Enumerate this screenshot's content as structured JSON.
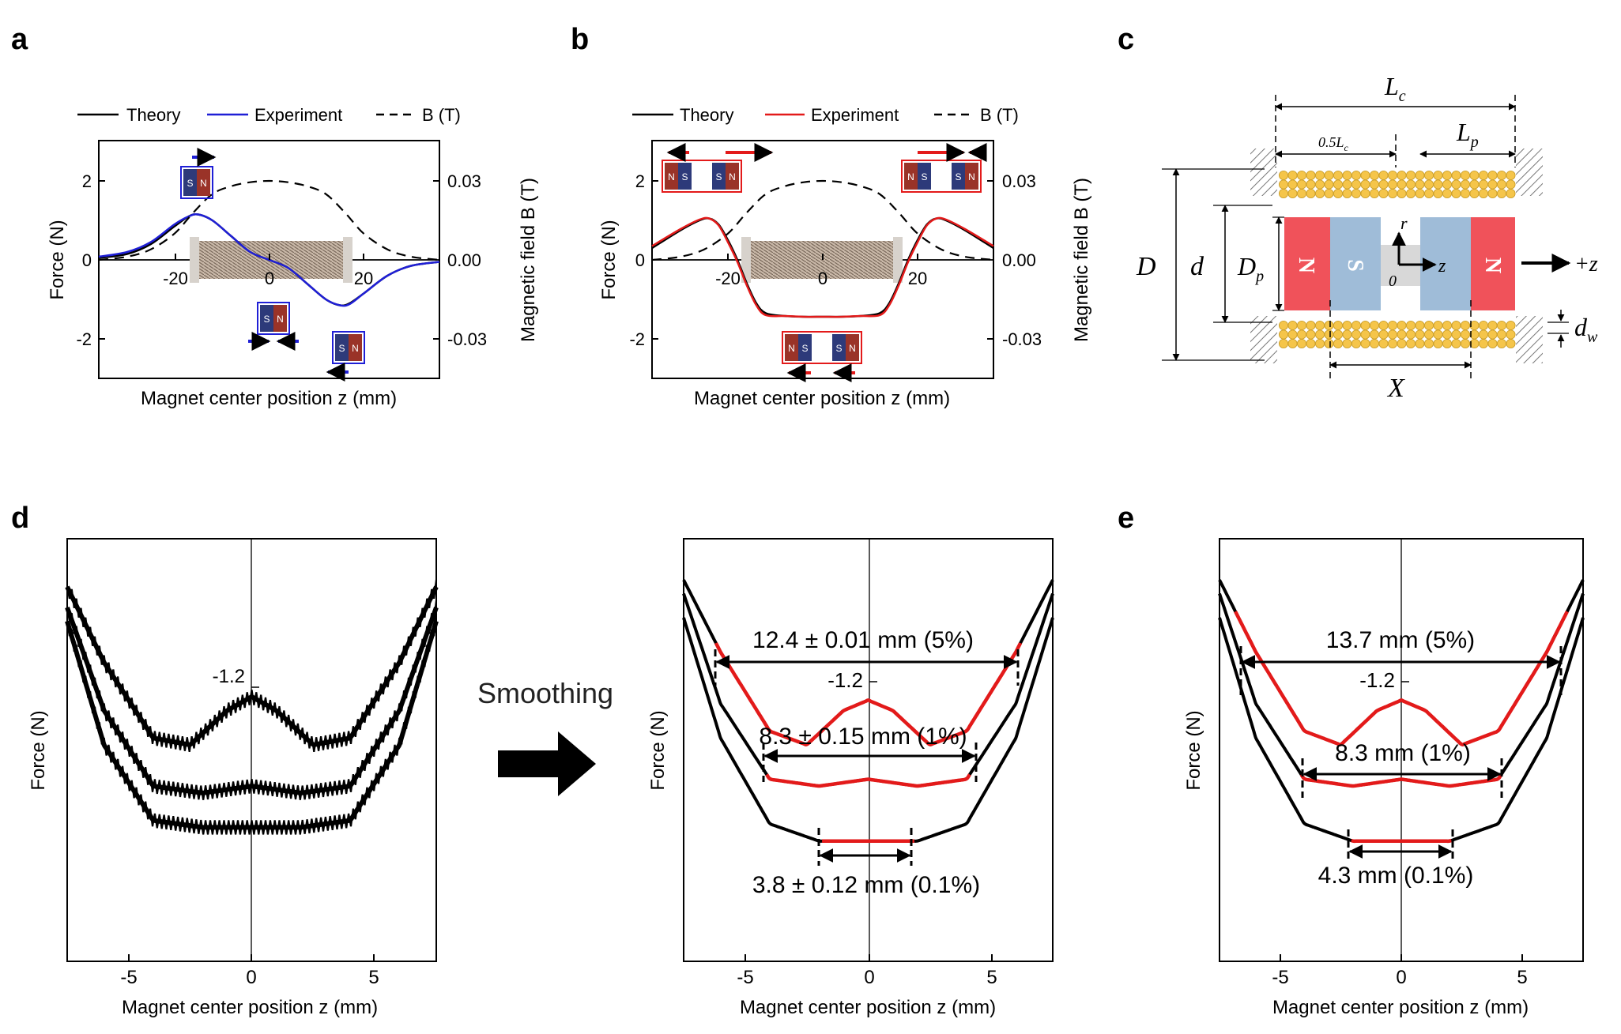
{
  "panels": {
    "a": {
      "label": "a",
      "legend": {
        "theory": "Theory",
        "experiment": "Experiment",
        "b": "B (T)"
      },
      "xlabel": "Magnet center position z (mm)",
      "ylabel": "Force (N)",
      "y2label": "Magnetic field B (T)",
      "xticks": [
        "-20",
        "0",
        "20"
      ],
      "yticks": [
        "2",
        "0",
        "-2"
      ],
      "y2ticks": [
        "0.03",
        "0.00",
        "-0.03"
      ],
      "magnet_letters": [
        "S",
        "N"
      ]
    },
    "b": {
      "label": "b",
      "legend": {
        "theory": "Theory",
        "experiment": "Experiment",
        "b": "B (T)"
      },
      "xlabel": "Magnet center position z (mm)",
      "ylabel": "Force (N)",
      "y2label": "Magnetic field B (T)",
      "xticks": [
        "-20",
        "0",
        "20"
      ],
      "yticks": [
        "2",
        "0",
        "-2"
      ],
      "y2ticks": [
        "0.03",
        "0.00",
        "-0.03"
      ],
      "magnet_letters": [
        "N",
        "S",
        "S",
        "N"
      ]
    },
    "c": {
      "label": "c",
      "labels": {
        "Lc": "L",
        "Lc_sub": "c",
        "half_Lc": "0.5L",
        "half_Lc_sub": "c",
        "Lp": "L",
        "Lp_sub": "p",
        "D": "D",
        "d": "d",
        "Dp": "D",
        "Dp_sub": "p",
        "dw": "d",
        "dw_sub": "w",
        "X": "X",
        "r": "r",
        "z": "z",
        "zero": "0",
        "plus_z": "+z",
        "pole_N": "N",
        "pole_S": "S"
      }
    },
    "d": {
      "label": "d",
      "xlabel": "Magnet center position z (mm)",
      "ylabel": "Force (N)",
      "xticks": [
        "-5",
        "0",
        "5"
      ],
      "ytick": "-1.2",
      "arrow_label": "Smoothing",
      "annotations": [
        "12.4 ± 0.01 mm (5%)",
        "8.3 ± 0.15 mm (1%)",
        "3.8 ± 0.12 mm (0.1%)"
      ]
    },
    "e": {
      "label": "e",
      "xlabel": "Magnet center position z (mm)",
      "ylabel": "Force (N)",
      "xticks": [
        "-5",
        "0",
        "5"
      ],
      "ytick": "-1.2",
      "annotations": [
        "13.7 mm (5%)",
        "8.3 mm (1%)",
        "4.3 mm (0.1%)"
      ]
    }
  },
  "colors": {
    "theory": "#000000",
    "exp_a": "#1f1fd6",
    "exp_b": "#e31a1a",
    "coil": "#f5c54a",
    "magnet_N": "#f0525a",
    "magnet_S": "#9fbcd8"
  },
  "chart_data": [
    {
      "type": "line",
      "panel": "a",
      "xlim": [
        -36,
        36
      ],
      "ylim": [
        -3,
        3
      ],
      "y2lim": [
        -0.045,
        0.045
      ],
      "series": [
        {
          "name": "Theory",
          "axis": "left",
          "x": [
            -36,
            -30,
            -25,
            -20,
            -17,
            -15,
            -12,
            -8,
            -4,
            0,
            4,
            8,
            12,
            15,
            17,
            20,
            25,
            30,
            36
          ],
          "y": [
            0.05,
            0.15,
            0.4,
            0.85,
            1.1,
            1.15,
            1.0,
            0.6,
            0.2,
            0.0,
            -0.2,
            -0.6,
            -1.0,
            -1.15,
            -1.1,
            -0.85,
            -0.4,
            -0.15,
            -0.05
          ]
        },
        {
          "name": "Experiment",
          "axis": "left",
          "x": [
            -36,
            -30,
            -25,
            -20,
            -17,
            -15,
            -12,
            -8,
            -4,
            0,
            4,
            8,
            12,
            15,
            17,
            20,
            25,
            30,
            36
          ],
          "y": [
            0.08,
            0.2,
            0.45,
            0.9,
            1.1,
            1.15,
            1.0,
            0.6,
            0.2,
            0.0,
            -0.2,
            -0.6,
            -1.0,
            -1.15,
            -1.12,
            -0.85,
            -0.4,
            -0.15,
            -0.05
          ]
        },
        {
          "name": "B (T)",
          "axis": "right",
          "x": [
            -36,
            -30,
            -25,
            -20,
            -16,
            -12,
            -8,
            -4,
            0,
            4,
            8,
            12,
            16,
            20,
            25,
            30,
            36
          ],
          "y": [
            0.0,
            0.0012,
            0.004,
            0.01,
            0.018,
            0.025,
            0.028,
            0.0295,
            0.03,
            0.0295,
            0.028,
            0.025,
            0.018,
            0.01,
            0.004,
            0.0012,
            0.0
          ]
        }
      ]
    },
    {
      "type": "line",
      "panel": "b",
      "xlim": [
        -36,
        36
      ],
      "ylim": [
        -3,
        3
      ],
      "y2lim": [
        -0.045,
        0.045
      ],
      "series": [
        {
          "name": "Theory",
          "axis": "left",
          "x": [
            -36,
            -30,
            -26,
            -24,
            -22,
            -20,
            -18,
            -16,
            -14,
            -12,
            -8,
            -4,
            0,
            4,
            8,
            12,
            14,
            16,
            18,
            20,
            22,
            24,
            26,
            30,
            36
          ],
          "y": [
            0.3,
            0.75,
            1.0,
            1.05,
            0.9,
            0.5,
            0.0,
            -0.6,
            -1.1,
            -1.35,
            -1.42,
            -1.44,
            -1.44,
            -1.44,
            -1.42,
            -1.35,
            -1.1,
            -0.6,
            0.0,
            0.5,
            0.9,
            1.05,
            1.0,
            0.75,
            0.3
          ]
        },
        {
          "name": "Experiment",
          "axis": "left",
          "x": [
            -36,
            -30,
            -26,
            -24,
            -22,
            -20,
            -18,
            -16,
            -14,
            -12,
            -8,
            -4,
            0,
            4,
            8,
            12,
            14,
            16,
            18,
            20,
            22,
            24,
            26,
            30,
            36
          ],
          "y": [
            0.35,
            0.78,
            1.02,
            1.05,
            0.88,
            0.45,
            -0.05,
            -0.65,
            -1.15,
            -1.4,
            -1.42,
            -1.44,
            -1.44,
            -1.44,
            -1.42,
            -1.4,
            -1.15,
            -0.65,
            -0.05,
            0.45,
            0.88,
            1.05,
            1.02,
            0.78,
            0.35
          ]
        },
        {
          "name": "B (T)",
          "axis": "right",
          "x": [
            -36,
            -30,
            -25,
            -20,
            -16,
            -12,
            -8,
            -4,
            0,
            4,
            8,
            12,
            16,
            20,
            25,
            30,
            36
          ],
          "y": [
            0.0,
            0.0012,
            0.004,
            0.01,
            0.018,
            0.025,
            0.028,
            0.0295,
            0.03,
            0.0295,
            0.028,
            0.025,
            0.018,
            0.01,
            0.004,
            0.0012,
            0.0
          ]
        }
      ]
    },
    {
      "type": "line",
      "panel": "d-raw",
      "xlim": [
        -7.5,
        7.5
      ],
      "series": [
        {
          "x": [
            -7.5,
            -6,
            -4,
            -2.5,
            -1,
            0,
            1,
            2.5,
            4,
            6,
            7.5
          ],
          "y": [
            -0.86,
            -1.08,
            -1.3,
            -1.32,
            -1.22,
            -1.18,
            -1.22,
            -1.32,
            -1.3,
            -1.08,
            -0.86
          ]
        },
        {
          "x": [
            -7.5,
            -6,
            -4,
            -2,
            0,
            2,
            4,
            6,
            7.5
          ],
          "y": [
            -0.92,
            -1.22,
            -1.44,
            -1.46,
            -1.44,
            -1.46,
            -1.44,
            -1.22,
            -0.92
          ]
        },
        {
          "x": [
            -7.5,
            -6,
            -4,
            -2,
            0,
            2,
            4,
            6,
            7.5
          ],
          "y": [
            -0.96,
            -1.32,
            -1.54,
            -1.56,
            -1.56,
            -1.56,
            -1.54,
            -1.32,
            -0.96
          ]
        }
      ]
    },
    {
      "type": "line",
      "panel": "d-smoothed",
      "xlim": [
        -7.5,
        7.5
      ],
      "series": [
        {
          "x": [
            -7.5,
            -6,
            -4,
            -2.5,
            -1,
            0,
            1,
            2.5,
            4,
            6,
            7.5
          ],
          "y": [
            -0.84,
            -1.05,
            -1.28,
            -1.32,
            -1.22,
            -1.19,
            -1.22,
            -1.32,
            -1.28,
            -1.05,
            -0.84
          ]
        },
        {
          "x": [
            -7.5,
            -6,
            -4,
            -2,
            0,
            2,
            4,
            6,
            7.5
          ],
          "y": [
            -0.88,
            -1.2,
            -1.42,
            -1.44,
            -1.42,
            -1.44,
            -1.42,
            -1.2,
            -0.88
          ]
        },
        {
          "x": [
            -7.5,
            -6,
            -4,
            -2,
            0,
            2,
            4,
            6,
            7.5
          ],
          "y": [
            -0.95,
            -1.3,
            -1.55,
            -1.6,
            -1.6,
            -1.6,
            -1.55,
            -1.3,
            -0.95
          ]
        }
      ],
      "ranges_mm": [
        12.4,
        8.3,
        3.8
      ]
    },
    {
      "type": "line",
      "panel": "e",
      "xlim": [
        -7.5,
        7.5
      ],
      "series": [
        {
          "x": [
            -7.5,
            -6,
            -4,
            -2.5,
            -1,
            0,
            1,
            2.5,
            4,
            6,
            7.5
          ],
          "y": [
            -0.84,
            -1.05,
            -1.28,
            -1.32,
            -1.22,
            -1.19,
            -1.22,
            -1.32,
            -1.28,
            -1.05,
            -0.84
          ]
        },
        {
          "x": [
            -7.5,
            -6,
            -4,
            -2,
            0,
            2,
            4,
            6,
            7.5
          ],
          "y": [
            -0.88,
            -1.2,
            -1.42,
            -1.44,
            -1.42,
            -1.44,
            -1.42,
            -1.2,
            -0.88
          ]
        },
        {
          "x": [
            -7.5,
            -6,
            -4,
            -2,
            0,
            2,
            4,
            6,
            7.5
          ],
          "y": [
            -0.95,
            -1.3,
            -1.55,
            -1.6,
            -1.6,
            -1.6,
            -1.55,
            -1.3,
            -0.95
          ]
        }
      ],
      "ranges_mm": [
        13.7,
        8.3,
        4.3
      ]
    }
  ]
}
